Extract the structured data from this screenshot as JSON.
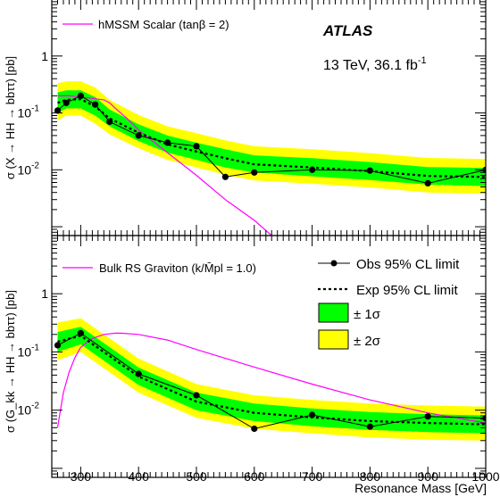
{
  "figure": {
    "experiment": "ATLAS",
    "energy_lumi": "13 TeV, 36.1 fb",
    "lumi_exponent": "-1",
    "xlabel": "Resonance Mass [GeV]",
    "xticks": [
      "300",
      "400",
      "500",
      "600",
      "700",
      "800",
      "900",
      "1000"
    ],
    "yticks": [
      {
        "base": "10",
        "exp": "-2",
        "v": 0.01
      },
      {
        "base": "10",
        "exp": "-1",
        "v": 0.1
      },
      {
        "base": "1",
        "exp": "",
        "v": 1
      }
    ]
  },
  "legend": {
    "obs": "Obs 95% CL limit",
    "exp": "Exp 95% CL limit",
    "one_sigma": "± 1σ",
    "two_sigma": "± 2σ"
  },
  "colors": {
    "green_band": "#00ff00",
    "yellow_band": "#ffff00",
    "model_curve": "#ff00ff",
    "frame": "#000000"
  },
  "chart_data": [
    {
      "type": "line",
      "panel": "top",
      "ylabel": "σ (X → HH → bbττ) [pb]",
      "model_label": "hMSSM Scalar (tanβ = 2)",
      "xlim": [
        250,
        1000
      ],
      "ylim": [
        0.0007,
        10
      ],
      "yscale": "log",
      "observed": {
        "x": [
          260,
          275,
          300,
          325,
          350,
          400,
          450,
          500,
          550,
          600,
          700,
          800,
          900,
          1000
        ],
        "y": [
          0.11,
          0.15,
          0.2,
          0.14,
          0.07,
          0.04,
          0.03,
          0.026,
          0.0075,
          0.009,
          0.01,
          0.0097,
          0.0058,
          0.01
        ]
      },
      "expected": {
        "x": [
          260,
          275,
          300,
          325,
          350,
          400,
          450,
          500,
          550,
          600,
          700,
          800,
          900,
          1000
        ],
        "y": [
          0.15,
          0.17,
          0.175,
          0.13,
          0.08,
          0.045,
          0.028,
          0.021,
          0.016,
          0.0125,
          0.011,
          0.0095,
          0.0078,
          0.0075
        ]
      },
      "band_1sigma": {
        "lo": [
          0.1,
          0.12,
          0.12,
          0.09,
          0.058,
          0.032,
          0.02,
          0.015,
          0.011,
          0.009,
          0.0077,
          0.0066,
          0.0055,
          0.0052
        ],
        "hi": [
          0.23,
          0.25,
          0.25,
          0.19,
          0.115,
          0.063,
          0.04,
          0.03,
          0.023,
          0.018,
          0.016,
          0.0137,
          0.0112,
          0.0108
        ]
      },
      "band_2sigma": {
        "lo": [
          0.073,
          0.09,
          0.09,
          0.065,
          0.042,
          0.024,
          0.015,
          0.011,
          0.0082,
          0.0065,
          0.0057,
          0.0049,
          0.004,
          0.0038
        ],
        "hi": [
          0.33,
          0.36,
          0.36,
          0.28,
          0.17,
          0.092,
          0.058,
          0.044,
          0.033,
          0.026,
          0.023,
          0.0197,
          0.0162,
          0.0155
        ]
      },
      "model": {
        "x": [
          260,
          280,
          300,
          320,
          340,
          350,
          360,
          380,
          400,
          450,
          500,
          550,
          600,
          630
        ],
        "y": [
          0.2,
          0.2,
          0.19,
          0.18,
          0.17,
          0.15,
          0.12,
          0.08,
          0.05,
          0.02,
          0.008,
          0.003,
          0.0013,
          0.0007
        ]
      }
    },
    {
      "type": "line",
      "panel": "bottom",
      "ylabel": "σ (G_kk → HH → bbττ) [pb]",
      "model_label": "Bulk RS Graviton (k/M̄pl = 1.0)",
      "xlim": [
        250,
        1000
      ],
      "ylim": [
        0.0007,
        10
      ],
      "yscale": "log",
      "observed": {
        "x": [
          260,
          300,
          400,
          500,
          600,
          700,
          800,
          900,
          1000
        ],
        "y": [
          0.13,
          0.21,
          0.042,
          0.018,
          0.0048,
          0.0083,
          0.0052,
          0.0078,
          0.0073
        ]
      },
      "expected": {
        "x": [
          260,
          300,
          400,
          500,
          600,
          700,
          800,
          900,
          1000
        ],
        "y": [
          0.15,
          0.19,
          0.038,
          0.014,
          0.009,
          0.0075,
          0.0065,
          0.006,
          0.0057
        ]
      },
      "band_1sigma": {
        "lo": [
          0.1,
          0.135,
          0.027,
          0.01,
          0.0065,
          0.0053,
          0.0046,
          0.0042,
          0.004
        ],
        "hi": [
          0.22,
          0.27,
          0.054,
          0.02,
          0.013,
          0.0107,
          0.0093,
          0.0085,
          0.0081
        ]
      },
      "band_2sigma": {
        "lo": [
          0.072,
          0.1,
          0.02,
          0.0074,
          0.0048,
          0.004,
          0.0034,
          0.0031,
          0.003
        ],
        "hi": [
          0.32,
          0.38,
          0.077,
          0.028,
          0.018,
          0.015,
          0.013,
          0.012,
          0.0115
        ]
      },
      "model": {
        "x": [
          260,
          265,
          270,
          280,
          290,
          300,
          320,
          340,
          360,
          370,
          400,
          450,
          500,
          600,
          700,
          800,
          900,
          1000
        ],
        "y": [
          0.005,
          0.01,
          0.02,
          0.045,
          0.08,
          0.12,
          0.17,
          0.2,
          0.21,
          0.21,
          0.2,
          0.16,
          0.11,
          0.055,
          0.028,
          0.015,
          0.009,
          0.006
        ]
      }
    }
  ]
}
